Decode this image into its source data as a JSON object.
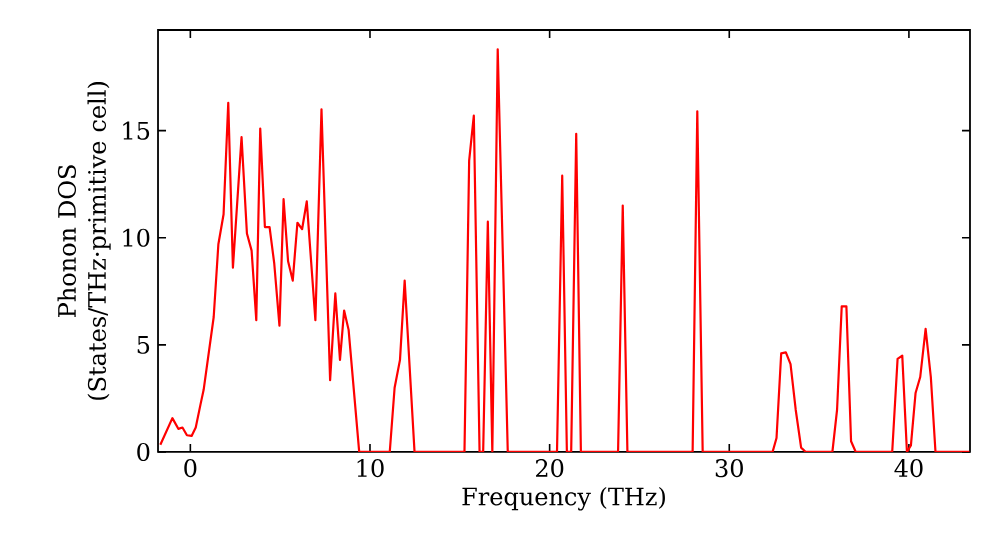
{
  "chart_data": {
    "type": "line",
    "xlabel": "Frequency (THz)",
    "ylabel": "Phonon DOS (States/THz·primitive cell)",
    "xlim": [
      -1.8,
      43.4
    ],
    "ylim": [
      0,
      19.7
    ],
    "xticks": [
      0,
      10,
      20,
      30,
      40
    ],
    "yticks": [
      0,
      5,
      10,
      15
    ],
    "marker": "none",
    "line_style": "solid",
    "series": [
      {
        "color": "#ff0000",
        "x": [
          -1.67,
          -1.0,
          -0.67,
          -0.44,
          -0.19,
          0.07,
          0.3,
          0.56,
          0.74,
          1.3,
          1.56,
          1.85,
          2.11,
          2.37,
          2.85,
          3.15,
          3.41,
          3.67,
          3.89,
          4.15,
          4.41,
          4.67,
          4.96,
          5.19,
          5.44,
          5.7,
          5.96,
          6.22,
          6.48,
          6.96,
          7.3,
          7.78,
          8.07,
          8.33,
          8.56,
          8.81,
          9.4,
          11.1,
          11.37,
          11.67,
          11.93,
          12.48,
          15.26,
          15.52,
          15.78,
          16.1,
          16.3,
          16.56,
          16.81,
          17.11,
          17.67,
          20.41,
          20.7,
          20.96,
          21.2,
          21.48,
          21.74,
          23.81,
          24.07,
          24.33,
          27.96,
          28.22,
          28.52,
          32.41,
          32.63,
          32.89,
          33.15,
          33.41,
          33.7,
          34.0,
          34.26,
          35.74,
          36.0,
          36.26,
          36.52,
          36.78,
          37.04,
          39.07,
          39.37,
          39.63,
          39.89,
          40.11,
          40.37,
          40.63,
          40.93,
          41.22,
          41.48,
          43.37
        ],
        "values": [
          0.34,
          1.58,
          1.08,
          1.14,
          0.78,
          0.75,
          1.14,
          2.2,
          2.9,
          6.3,
          9.7,
          11.1,
          16.3,
          8.6,
          14.7,
          10.2,
          9.4,
          6.15,
          15.1,
          10.5,
          10.5,
          8.8,
          5.9,
          11.8,
          8.9,
          8.0,
          10.7,
          10.4,
          11.7,
          6.15,
          16.0,
          3.35,
          7.4,
          4.3,
          6.6,
          5.7,
          0,
          0,
          3.0,
          4.3,
          8.0,
          0,
          0,
          13.6,
          15.7,
          0,
          0,
          10.75,
          0,
          18.8,
          0,
          0,
          12.9,
          0,
          0,
          14.85,
          0,
          0,
          11.5,
          0,
          0,
          15.9,
          0,
          0,
          0.65,
          4.6,
          4.65,
          4.1,
          1.96,
          0.2,
          0,
          0,
          1.96,
          6.8,
          6.8,
          0.5,
          0,
          0,
          4.35,
          4.5,
          0,
          0.3,
          2.75,
          3.5,
          5.75,
          3.5,
          0,
          0
        ]
      }
    ]
  }
}
